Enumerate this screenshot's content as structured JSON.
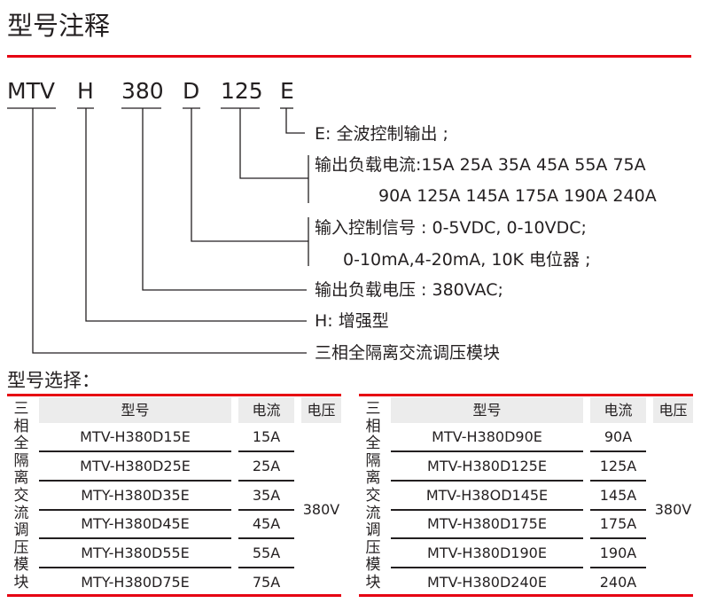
{
  "title": "型号注释",
  "code_parts": [
    "MTV",
    "H",
    "380",
    "D",
    "125",
    "E"
  ],
  "descriptions": {
    "e": "E: 全波控制输出 ;",
    "current_1": "输出负载电流:15A 25A 35A 45A 55A 75A",
    "current_2": "90A 125A 145A 175A 190A 240A",
    "input_1": "输入控制信号 : 0-5VDC, 0-10VDC;",
    "input_2": "0-10mA,4-20mA, 10K 电位器 ;",
    "voltage": "输出负载电压 : 380VAC;",
    "h": "H: 增强型",
    "mtv": "三相全隔离交流调压模块"
  },
  "selection_title": "型号选择：",
  "colors": {
    "accent": "#e60012",
    "header_bg": "#ececec"
  },
  "tables": [
    {
      "side_label": "三相全隔离交流调压模块",
      "headers": {
        "model": "型号",
        "current": "电流",
        "voltage": "电压"
      },
      "voltage": "380V",
      "rows": [
        {
          "model": "MTV-H380D15E",
          "current": "15A"
        },
        {
          "model": "MTV-H380D25E",
          "current": "25A"
        },
        {
          "model": "MTY-H380D35E",
          "current": "35A"
        },
        {
          "model": "MTY-H380D45E",
          "current": "45A"
        },
        {
          "model": "MTY-H380D55E",
          "current": "55A"
        },
        {
          "model": "MTY-H380D75E",
          "current": "75A"
        }
      ]
    },
    {
      "side_label": "三相全隔离交流调压模块",
      "headers": {
        "model": "型号",
        "current": "电流",
        "voltage": "电压"
      },
      "voltage": "380V",
      "rows": [
        {
          "model": "MTV-H380D90E",
          "current": "90A"
        },
        {
          "model": "MTV-H380D125E",
          "current": "125A"
        },
        {
          "model": "MTV-H38OD145E",
          "current": "145A"
        },
        {
          "model": "MTV-H380D175E",
          "current": "175A"
        },
        {
          "model": "MTV-H380D190E",
          "current": "190A"
        },
        {
          "model": "MTV-H380D240E",
          "current": "240A"
        }
      ]
    }
  ]
}
